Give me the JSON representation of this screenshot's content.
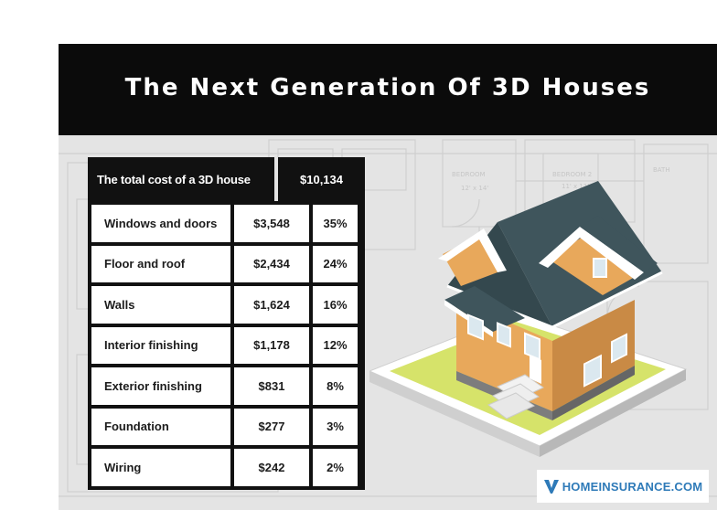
{
  "title": "The Next Generation Of 3D Houses",
  "total": {
    "label": "The total cost of a 3D house",
    "value": "$10,134"
  },
  "rows": [
    {
      "label": "Windows and doors",
      "cost": "$3,548",
      "percent": "35%"
    },
    {
      "label": "Floor and roof",
      "cost": "$2,434",
      "percent": "24%"
    },
    {
      "label": "Walls",
      "cost": "$1,624",
      "percent": "16%"
    },
    {
      "label": "Interior finishing",
      "cost": "$1,178",
      "percent": "12%"
    },
    {
      "label": "Exterior finishing",
      "cost": "$831",
      "percent": "8%"
    },
    {
      "label": "Foundation",
      "cost": "$277",
      "percent": "3%"
    },
    {
      "label": "Wiring",
      "cost": "$242",
      "percent": "2%"
    }
  ],
  "brand": {
    "text": "HOMEINSURANCE.COM",
    "icon": "v-logo-icon"
  },
  "colors": {
    "header": "#0b0b0b",
    "table": "#111111",
    "brand": "#2e7ab8",
    "roof": "#3f555c",
    "walls": "#e8a85b",
    "lawn": "#d6e36a"
  }
}
